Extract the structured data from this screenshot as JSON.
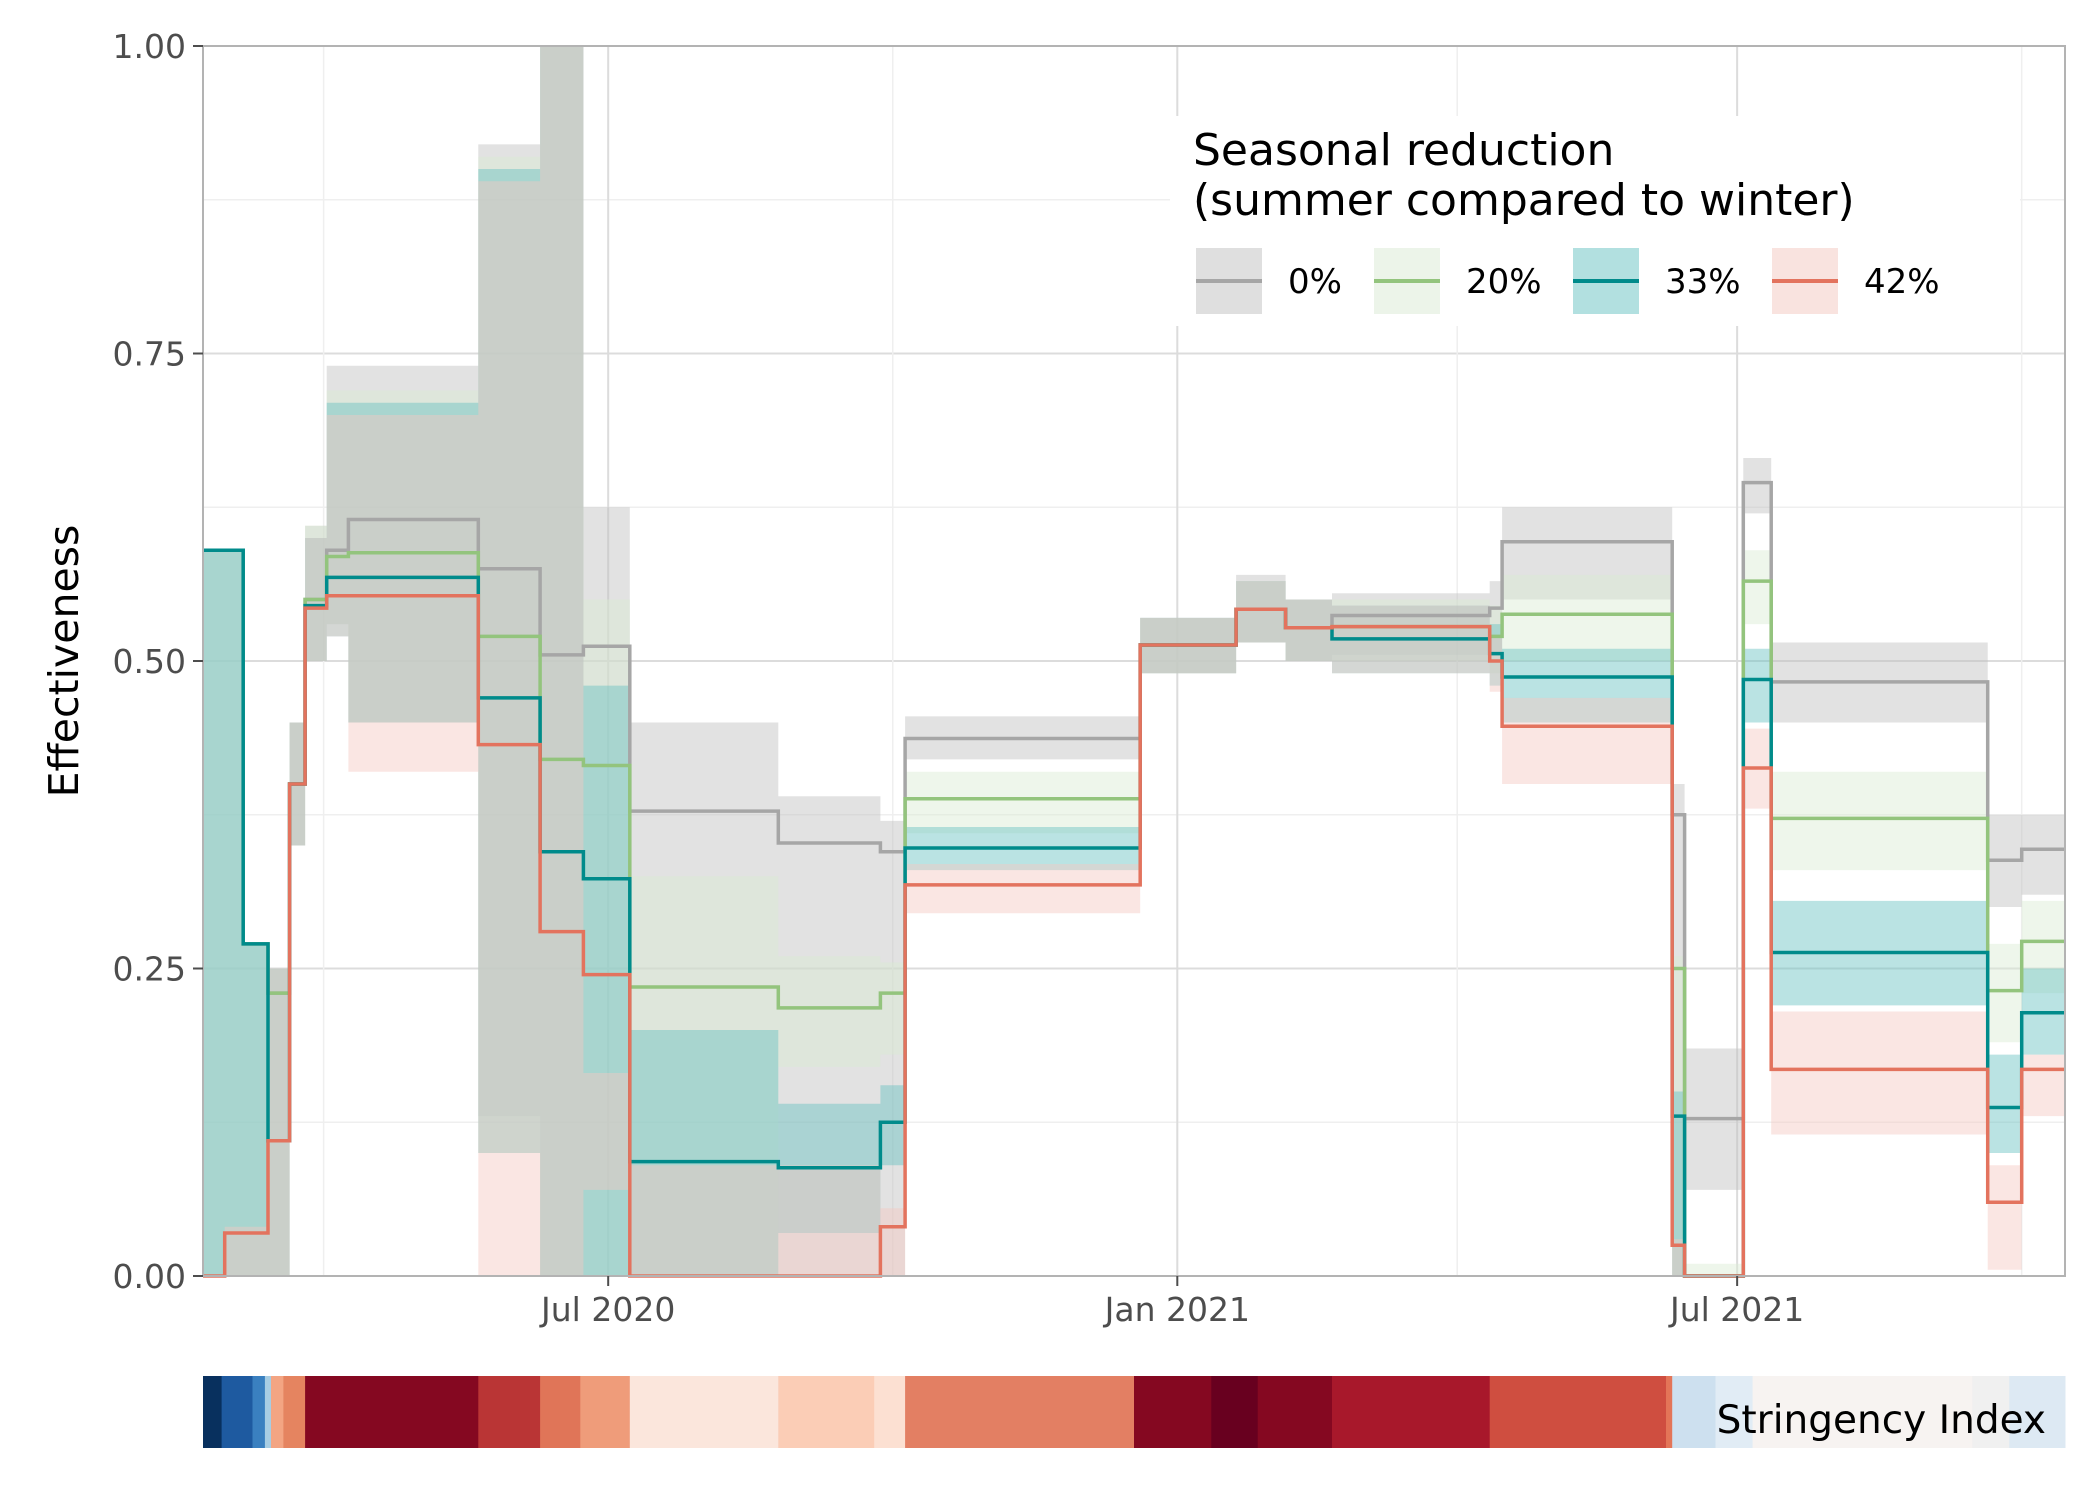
{
  "chart_data": {
    "type": "line",
    "title": "",
    "xlabel": "",
    "ylabel": "Effectiveness",
    "ylim": [
      0,
      1
    ],
    "y_ticks": [
      "0.00",
      "0.25",
      "0.50",
      "0.75",
      "1.00"
    ],
    "x_ticks": [
      "Jul 2020",
      "Jan 2021",
      "Jul 2021"
    ],
    "x_range": [
      "2020-02-21",
      "2021-10-15"
    ],
    "grid": true,
    "legend": {
      "title_line1": "Seasonal reduction",
      "title_line2": "(summer compared to winter)",
      "position": "top-right"
    },
    "bottom_bar_label": "Stringency Index",
    "series": [
      {
        "name": "0%",
        "color": "#a6a6a6",
        "band_color": "#bfbfbf",
        "dates": [
          "2020-02-21",
          "2020-03-05",
          "2020-03-13",
          "2020-03-20",
          "2020-03-25",
          "2020-04-01",
          "2020-04-08",
          "2020-05-20",
          "2020-06-09",
          "2020-06-23",
          "2020-07-08",
          "2020-08-25",
          "2020-09-27",
          "2020-10-05",
          "2020-12-20",
          "2021-01-20",
          "2021-02-05",
          "2021-02-20",
          "2021-04-12",
          "2021-04-16",
          "2021-06-10",
          "2021-06-14",
          "2021-07-03",
          "2021-07-12",
          "2021-08-12",
          "2021-09-20",
          "2021-10-01"
        ],
        "values": [
          0.59,
          0.27,
          0.23,
          0.4,
          0.55,
          0.59,
          0.615,
          0.575,
          0.505,
          0.512,
          0.378,
          0.352,
          0.345,
          0.437,
          0.513,
          0.542,
          0.527,
          0.537,
          0.543,
          0.597,
          0.375,
          0.128,
          0.645,
          0.483,
          0.483,
          0.338,
          0.347
        ],
        "lower": [
          0.0,
          0.0,
          0.0,
          0.35,
          0.5,
          0.53,
          0.45,
          0.13,
          0.0,
          0.0,
          0.0,
          0.0,
          0.0,
          0.42,
          0.49,
          0.515,
          0.5,
          0.505,
          0.505,
          0.55,
          0.0,
          0.07,
          0.62,
          0.45,
          0.45,
          0.3,
          0.31
        ],
        "upper": [
          0.59,
          0.27,
          0.25,
          0.45,
          0.61,
          0.74,
          0.74,
          0.92,
          1.0,
          0.625,
          0.45,
          0.39,
          0.37,
          0.455,
          0.535,
          0.57,
          0.55,
          0.555,
          0.565,
          0.625,
          0.4,
          0.185,
          0.665,
          0.515,
          0.515,
          0.375,
          0.375
        ]
      },
      {
        "name": "20%",
        "color": "#93c47d",
        "band_color": "#d9ead3",
        "dates": [
          "2020-02-21",
          "2020-03-05",
          "2020-03-13",
          "2020-03-20",
          "2020-03-25",
          "2020-04-01",
          "2020-04-08",
          "2020-05-20",
          "2020-06-09",
          "2020-06-23",
          "2020-07-08",
          "2020-08-25",
          "2020-09-27",
          "2020-10-05",
          "2020-12-20",
          "2021-01-20",
          "2021-02-05",
          "2021-02-20",
          "2021-04-12",
          "2021-04-16",
          "2021-06-10",
          "2021-06-14",
          "2021-07-03",
          "2021-07-12",
          "2021-08-12",
          "2021-09-20",
          "2021-10-01"
        ],
        "values": [
          0.59,
          0.27,
          0.23,
          0.4,
          0.55,
          0.585,
          0.588,
          0.52,
          0.42,
          0.415,
          0.235,
          0.218,
          0.23,
          0.388,
          0.513,
          0.542,
          0.527,
          0.528,
          0.52,
          0.538,
          0.25,
          0.0,
          0.565,
          0.372,
          0.372,
          0.232,
          0.272
        ],
        "lower": [
          0.0,
          0.0,
          0.0,
          0.35,
          0.5,
          0.53,
          0.45,
          0.1,
          0.0,
          0.0,
          0.0,
          0.17,
          0.18,
          0.36,
          0.49,
          0.515,
          0.5,
          0.5,
          0.49,
          0.5,
          0.0,
          0.0,
          0.53,
          0.33,
          0.33,
          0.19,
          0.23
        ],
        "upper": [
          0.59,
          0.27,
          0.25,
          0.45,
          0.61,
          0.72,
          0.72,
          0.91,
          1.0,
          0.55,
          0.325,
          0.26,
          0.255,
          0.41,
          0.535,
          0.565,
          0.55,
          0.55,
          0.545,
          0.57,
          0.26,
          0.01,
          0.59,
          0.41,
          0.41,
          0.27,
          0.305
        ]
      },
      {
        "name": "33%",
        "color": "#008b8b",
        "band_color": "#66c2c2",
        "dates": [
          "2020-02-21",
          "2020-03-05",
          "2020-03-13",
          "2020-03-20",
          "2020-03-25",
          "2020-04-01",
          "2020-04-08",
          "2020-05-20",
          "2020-06-09",
          "2020-06-23",
          "2020-07-08",
          "2020-08-25",
          "2020-09-27",
          "2020-10-05",
          "2020-12-20",
          "2021-01-20",
          "2021-02-05",
          "2021-02-20",
          "2021-04-12",
          "2021-04-16",
          "2021-06-10",
          "2021-06-14",
          "2021-07-03",
          "2021-07-12",
          "2021-08-12",
          "2021-09-20",
          "2021-10-01"
        ],
        "values": [
          0.59,
          0.27,
          0.11,
          0.4,
          0.545,
          0.568,
          0.568,
          0.47,
          0.345,
          0.323,
          0.093,
          0.088,
          0.125,
          0.348,
          0.513,
          0.542,
          0.527,
          0.518,
          0.506,
          0.487,
          0.13,
          0.0,
          0.485,
          0.263,
          0.263,
          0.137,
          0.214
        ],
        "lower": [
          0.0,
          0.0,
          0.0,
          0.35,
          0.5,
          0.52,
          0.45,
          0.1,
          0.0,
          0.0,
          0.0,
          0.035,
          0.09,
          0.33,
          0.49,
          0.515,
          0.5,
          0.49,
          0.48,
          0.45,
          0.0,
          0.0,
          0.45,
          0.22,
          0.22,
          0.1,
          0.18
        ],
        "upper": [
          0.59,
          0.27,
          0.25,
          0.45,
          0.6,
          0.71,
          0.71,
          0.9,
          1.0,
          0.48,
          0.2,
          0.14,
          0.155,
          0.365,
          0.535,
          0.565,
          0.55,
          0.545,
          0.53,
          0.51,
          0.15,
          0.0,
          0.51,
          0.305,
          0.305,
          0.18,
          0.25
        ]
      },
      {
        "name": "42%",
        "color": "#e3735e",
        "band_color": "#f4c7c0",
        "dates": [
          "2020-02-21",
          "2020-02-28",
          "2020-03-05",
          "2020-03-13",
          "2020-03-20",
          "2020-03-25",
          "2020-04-01",
          "2020-04-08",
          "2020-05-20",
          "2020-06-09",
          "2020-06-23",
          "2020-07-08",
          "2020-09-27",
          "2020-10-05",
          "2020-12-20",
          "2021-01-20",
          "2021-02-05",
          "2021-02-20",
          "2021-04-12",
          "2021-04-16",
          "2021-06-10",
          "2021-06-14",
          "2021-07-03",
          "2021-07-12",
          "2021-08-12",
          "2021-09-20",
          "2021-10-01"
        ],
        "values": [
          0.0,
          0.035,
          0.035,
          0.11,
          0.4,
          0.543,
          0.553,
          0.553,
          0.432,
          0.28,
          0.245,
          0.0,
          0.04,
          0.318,
          0.513,
          0.542,
          0.527,
          0.528,
          0.5,
          0.447,
          0.025,
          0.0,
          0.413,
          0.168,
          0.168,
          0.06,
          0.168
        ],
        "lower": [
          0.0,
          0.0,
          0.0,
          0.0,
          0.35,
          0.5,
          0.52,
          0.41,
          0.0,
          0.0,
          0.07,
          0.0,
          0.0,
          0.295,
          0.49,
          0.515,
          0.5,
          0.49,
          0.475,
          0.4,
          0.0,
          0.0,
          0.38,
          0.115,
          0.115,
          0.005,
          0.13
        ],
        "upper": [
          0.0,
          0.04,
          0.04,
          0.25,
          0.45,
          0.6,
          0.7,
          0.7,
          0.89,
          1.0,
          0.165,
          0.09,
          0.055,
          0.335,
          0.535,
          0.565,
          0.55,
          0.545,
          0.52,
          0.47,
          0.03,
          0.0,
          0.445,
          0.215,
          0.215,
          0.09,
          0.18
        ]
      }
    ],
    "stringency_segments": [
      {
        "end": "2020-02-27",
        "color": "#08305e"
      },
      {
        "end": "2020-03-08",
        "color": "#1e5aa0"
      },
      {
        "end": "2020-03-12",
        "color": "#3a80c0"
      },
      {
        "end": "2020-03-14",
        "color": "#a7cde3"
      },
      {
        "end": "2020-03-18",
        "color": "#f3a583"
      },
      {
        "end": "2020-03-25",
        "color": "#e58460"
      },
      {
        "end": "2020-05-20",
        "color": "#850821"
      },
      {
        "end": "2020-06-09",
        "color": "#ba3535"
      },
      {
        "end": "2020-06-22",
        "color": "#e07558"
      },
      {
        "end": "2020-07-08",
        "color": "#ef9c7a"
      },
      {
        "end": "2020-08-25",
        "color": "#fbe6dc"
      },
      {
        "end": "2020-09-25",
        "color": "#fbcdb6"
      },
      {
        "end": "2020-10-05",
        "color": "#fce0d2"
      },
      {
        "end": "2020-12-18",
        "color": "#e37f63"
      },
      {
        "end": "2021-01-12",
        "color": "#850821"
      },
      {
        "end": "2021-01-27",
        "color": "#68001f"
      },
      {
        "end": "2021-02-20",
        "color": "#850821"
      },
      {
        "end": "2021-04-12",
        "color": "#a8182b"
      },
      {
        "end": "2021-06-08",
        "color": "#cf4e40"
      },
      {
        "end": "2021-06-10",
        "color": "#e37558"
      },
      {
        "end": "2021-06-24",
        "color": "#cde0ef"
      },
      {
        "end": "2021-07-06",
        "color": "#e1ecf5"
      },
      {
        "end": "2021-09-15",
        "color": "#f7f3f1"
      },
      {
        "end": "2021-09-27",
        "color": "#f0f0f0"
      },
      {
        "end": "2021-10-15",
        "color": "#dde9f3"
      }
    ]
  }
}
